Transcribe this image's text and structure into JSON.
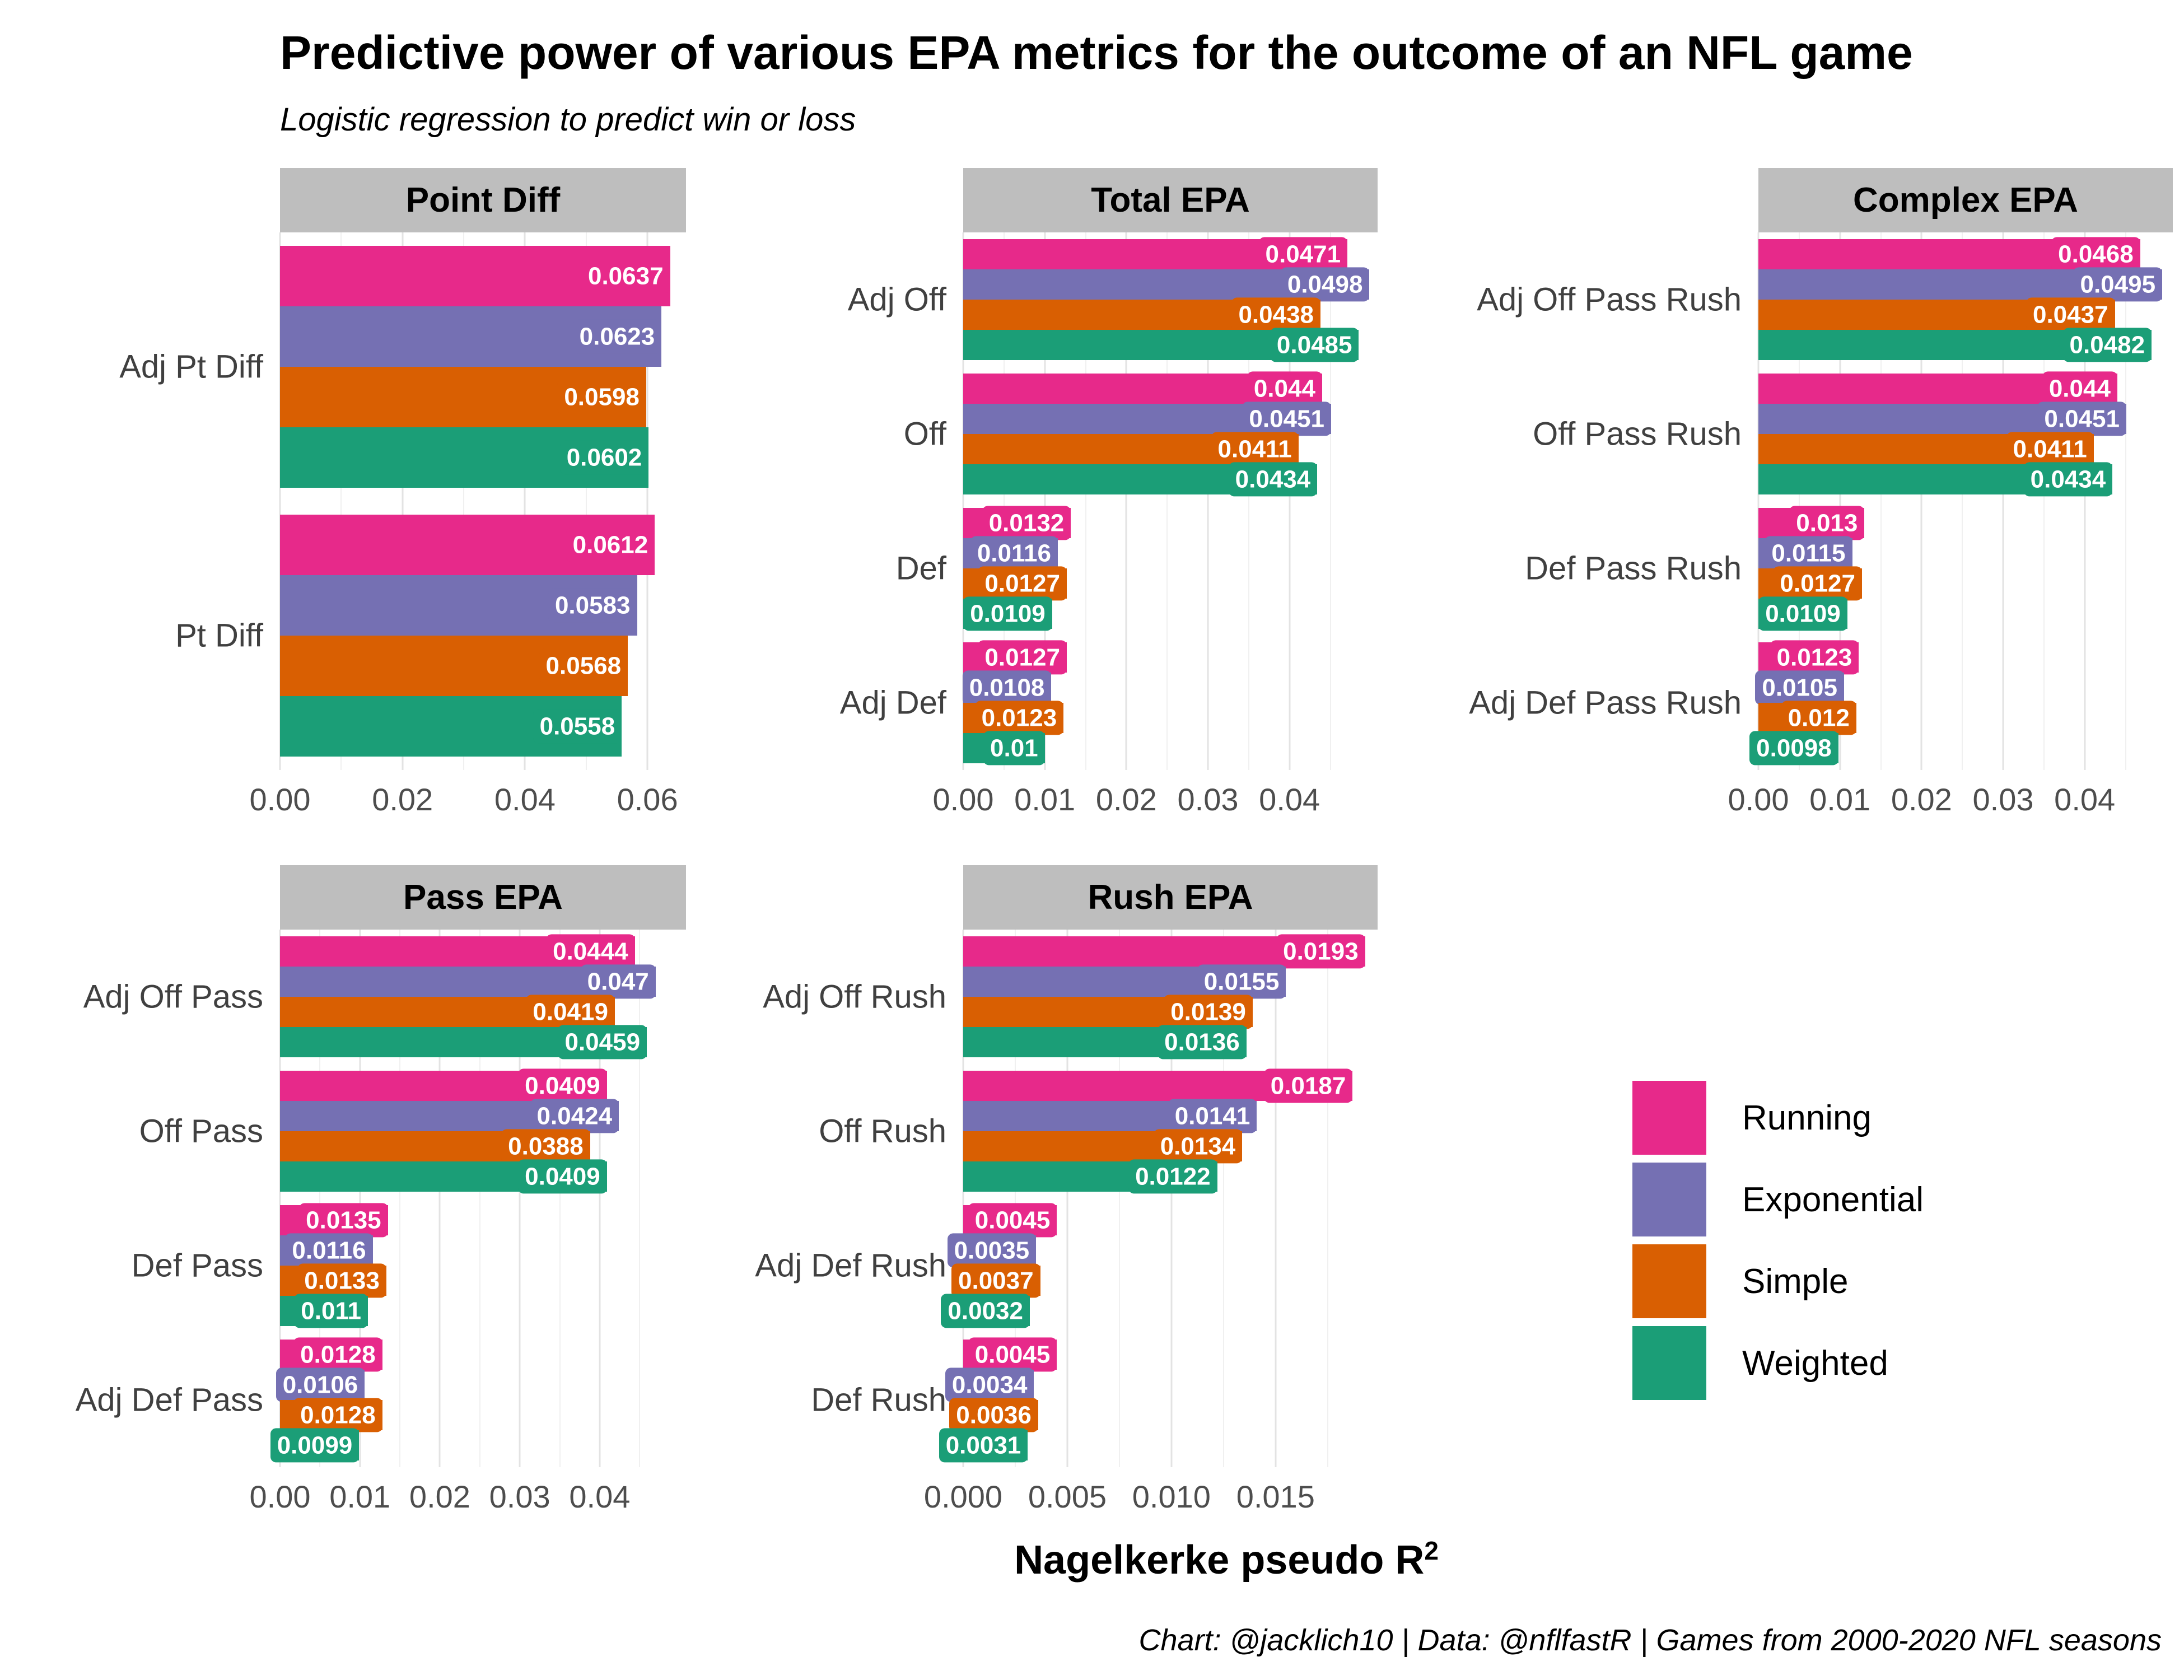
{
  "title": "Predictive power of various EPA metrics for the outcome of an NFL game",
  "subtitle": "Logistic regression to predict win or loss",
  "x_axis_title": {
    "text": "Nagelkerke pseudo R",
    "superscript": "2"
  },
  "caption": "Chart: @jacklich10 | Data: @nflfastR | Games from 2000-2020 NFL seasons",
  "colors": {
    "Running": "#E7298A",
    "Exponential": "#7570B3",
    "Simple": "#D95F02",
    "Weighted": "#1B9E77",
    "strip_bg": "#BEBEBE",
    "grid_major": "#E3E3E3",
    "grid_minor": "#F0F0F0",
    "axis_text": "#4D4D4D",
    "row_label_text": "#404040",
    "bar_label_text": "#FFFFFF"
  },
  "series_order": [
    "Running",
    "Exponential",
    "Simple",
    "Weighted"
  ],
  "legend": {
    "items": [
      {
        "label": "Running",
        "color": "#E7298A"
      },
      {
        "label": "Exponential",
        "color": "#7570B3"
      },
      {
        "label": "Simple",
        "color": "#D95F02"
      },
      {
        "label": "Weighted",
        "color": "#1B9E77"
      }
    ],
    "position": "right"
  },
  "chart_data": [
    {
      "type": "bar",
      "panel": "Point Diff",
      "orientation": "horizontal",
      "xlabel": "Nagelkerke pseudo R2",
      "x_max": 0.0663,
      "ticks": [
        {
          "v": 0,
          "label": "0.00"
        },
        {
          "v": 0.02,
          "label": "0.02"
        },
        {
          "v": 0.04,
          "label": "0.04"
        },
        {
          "v": 0.06,
          "label": "0.06"
        }
      ],
      "minor_ticks": [
        0.01,
        0.03,
        0.05
      ],
      "categories": [
        "Adj Pt Diff",
        "Pt Diff"
      ],
      "series": [
        {
          "name": "Running",
          "values": [
            0.0637,
            0.0612
          ]
        },
        {
          "name": "Exponential",
          "values": [
            0.0623,
            0.0583
          ]
        },
        {
          "name": "Simple",
          "values": [
            0.0598,
            0.0568
          ]
        },
        {
          "name": "Weighted",
          "values": [
            0.0602,
            0.0558
          ]
        }
      ]
    },
    {
      "type": "bar",
      "panel": "Total EPA",
      "orientation": "horizontal",
      "xlabel": "Nagelkerke pseudo R2",
      "x_max": 0.0508,
      "ticks": [
        {
          "v": 0,
          "label": "0.00"
        },
        {
          "v": 0.01,
          "label": "0.01"
        },
        {
          "v": 0.02,
          "label": "0.02"
        },
        {
          "v": 0.03,
          "label": "0.03"
        },
        {
          "v": 0.04,
          "label": "0.04"
        }
      ],
      "minor_ticks": [
        0.005,
        0.015,
        0.025,
        0.035,
        0.045
      ],
      "categories": [
        "Adj Off",
        "Off",
        "Def",
        "Adj Def"
      ],
      "series": [
        {
          "name": "Running",
          "values": [
            0.0471,
            0.044,
            0.0132,
            0.0127
          ]
        },
        {
          "name": "Exponential",
          "values": [
            0.0498,
            0.0451,
            0.0116,
            0.0108
          ]
        },
        {
          "name": "Simple",
          "values": [
            0.0438,
            0.0411,
            0.0127,
            0.0123
          ]
        },
        {
          "name": "Weighted",
          "values": [
            0.0485,
            0.0434,
            0.0109,
            0.01
          ]
        }
      ]
    },
    {
      "type": "bar",
      "panel": "Complex EPA",
      "orientation": "horizontal",
      "xlabel": "Nagelkerke pseudo R2",
      "x_max": 0.0508,
      "ticks": [
        {
          "v": 0,
          "label": "0.00"
        },
        {
          "v": 0.01,
          "label": "0.01"
        },
        {
          "v": 0.02,
          "label": "0.02"
        },
        {
          "v": 0.03,
          "label": "0.03"
        },
        {
          "v": 0.04,
          "label": "0.04"
        }
      ],
      "minor_ticks": [
        0.005,
        0.015,
        0.025,
        0.035,
        0.045
      ],
      "categories": [
        "Adj Off Pass Rush",
        "Off Pass Rush",
        "Def Pass Rush",
        "Adj Def Pass Rush"
      ],
      "series": [
        {
          "name": "Running",
          "values": [
            0.0468,
            0.044,
            0.013,
            0.0123
          ]
        },
        {
          "name": "Exponential",
          "values": [
            0.0495,
            0.0451,
            0.0115,
            0.0105
          ]
        },
        {
          "name": "Simple",
          "values": [
            0.0437,
            0.0411,
            0.0127,
            0.012
          ]
        },
        {
          "name": "Weighted",
          "values": [
            0.0482,
            0.0434,
            0.0109,
            0.0098
          ]
        }
      ]
    },
    {
      "type": "bar",
      "panel": "Pass EPA",
      "orientation": "horizontal",
      "xlabel": "Nagelkerke pseudo R2",
      "x_max": 0.0508,
      "ticks": [
        {
          "v": 0,
          "label": "0.00"
        },
        {
          "v": 0.01,
          "label": "0.01"
        },
        {
          "v": 0.02,
          "label": "0.02"
        },
        {
          "v": 0.03,
          "label": "0.03"
        },
        {
          "v": 0.04,
          "label": "0.04"
        }
      ],
      "minor_ticks": [
        0.005,
        0.015,
        0.025,
        0.035,
        0.045
      ],
      "categories": [
        "Adj Off Pass",
        "Off Pass",
        "Def Pass",
        "Adj Def Pass"
      ],
      "series": [
        {
          "name": "Running",
          "values": [
            0.0444,
            0.0409,
            0.0135,
            0.0128
          ]
        },
        {
          "name": "Exponential",
          "values": [
            0.047,
            0.0424,
            0.0116,
            0.0106
          ]
        },
        {
          "name": "Simple",
          "values": [
            0.0419,
            0.0388,
            0.0133,
            0.0128
          ]
        },
        {
          "name": "Weighted",
          "values": [
            0.0459,
            0.0409,
            0.011,
            0.0099
          ]
        }
      ]
    },
    {
      "type": "bar",
      "panel": "Rush EPA",
      "orientation": "horizontal",
      "xlabel": "Nagelkerke pseudo R2",
      "x_max": 0.0199,
      "ticks": [
        {
          "v": 0,
          "label": "0.000"
        },
        {
          "v": 0.005,
          "label": "0.005"
        },
        {
          "v": 0.01,
          "label": "0.010"
        },
        {
          "v": 0.015,
          "label": "0.015"
        }
      ],
      "minor_ticks": [
        0.0025,
        0.0075,
        0.0125,
        0.0175
      ],
      "categories": [
        "Adj Off Rush",
        "Off Rush",
        "Adj Def Rush",
        "Def Rush"
      ],
      "series": [
        {
          "name": "Running",
          "values": [
            0.0193,
            0.0187,
            0.0045,
            0.0045
          ]
        },
        {
          "name": "Exponential",
          "values": [
            0.0155,
            0.0141,
            0.0035,
            0.0034
          ]
        },
        {
          "name": "Simple",
          "values": [
            0.0139,
            0.0134,
            0.0037,
            0.0036
          ]
        },
        {
          "name": "Weighted",
          "values": [
            0.0136,
            0.0122,
            0.0032,
            0.0031
          ]
        }
      ]
    }
  ]
}
